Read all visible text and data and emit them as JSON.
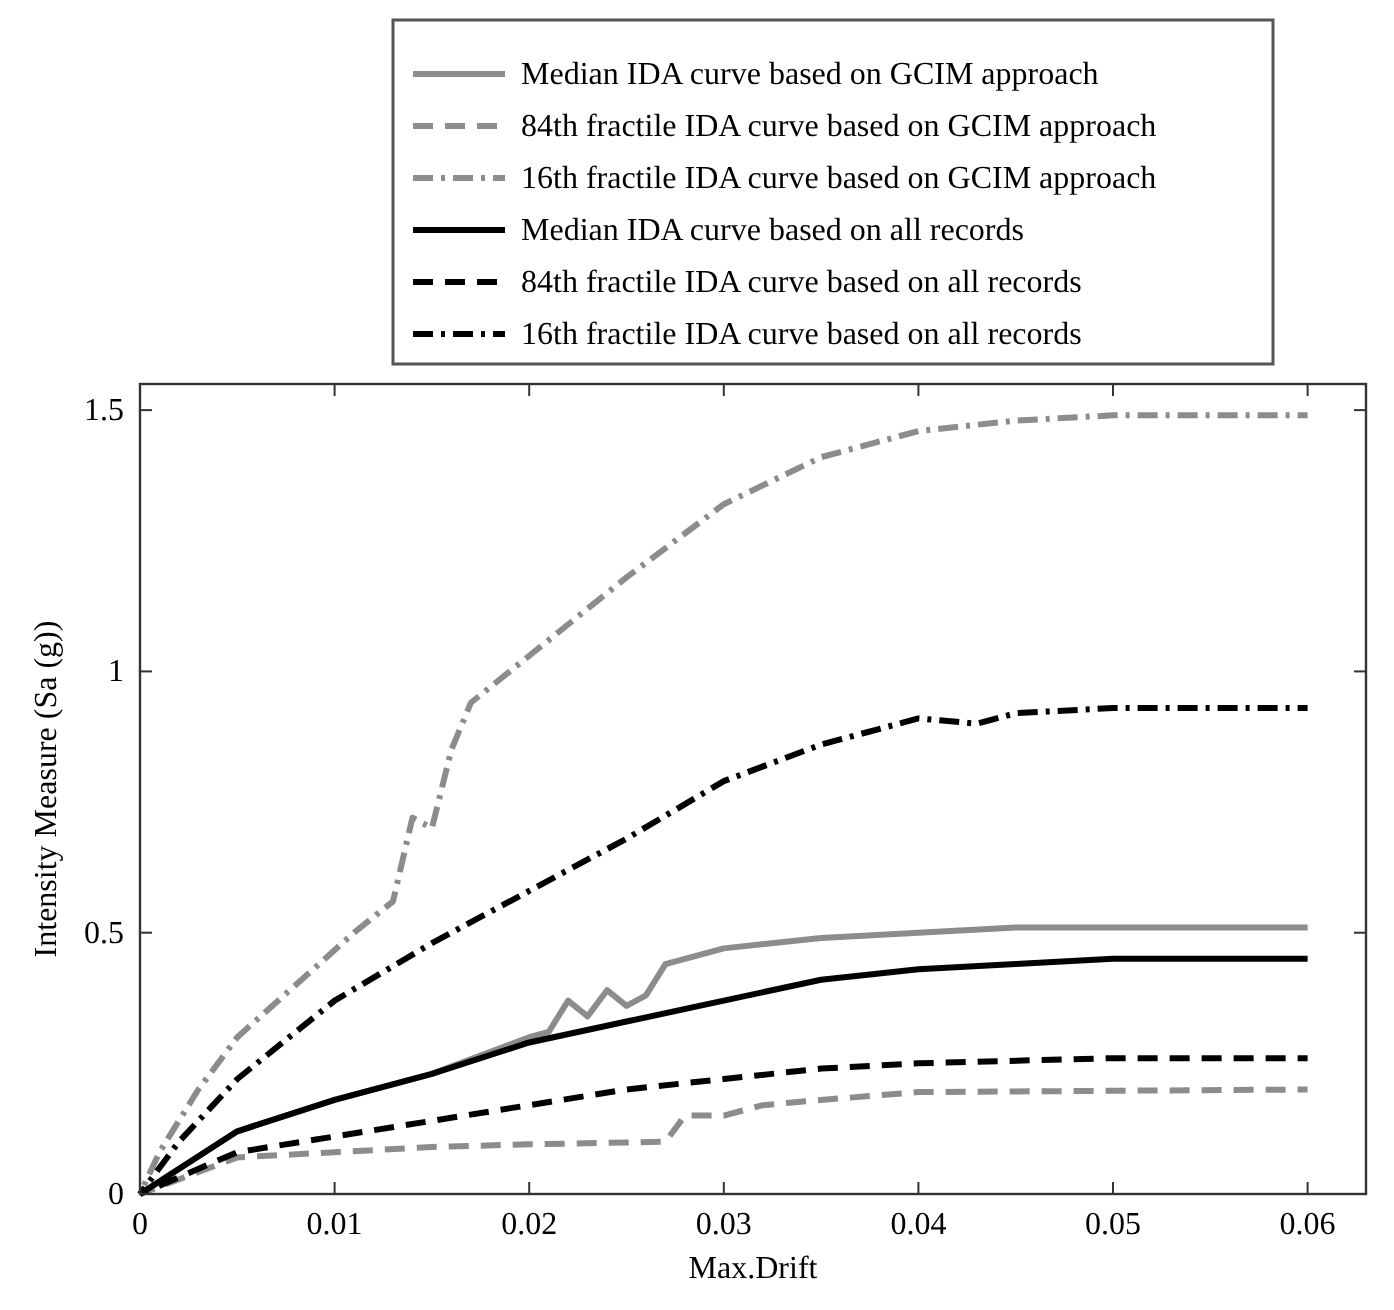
{
  "chart_data": {
    "type": "line",
    "xlabel": "Max.Drift",
    "ylabel": "Intensity Measure (Sa (g))",
    "xlim": [
      0,
      0.063
    ],
    "ylim": [
      0,
      1.55
    ],
    "xticks": [
      0,
      0.01,
      0.02,
      0.03,
      0.04,
      0.05,
      0.06
    ],
    "yticks": [
      0,
      0.5,
      1,
      1.5
    ],
    "grid": false,
    "legend": "top",
    "marker": "none",
    "series": [
      {
        "name": "Median IDA curve based on GCIM approach",
        "color": "#8c8c8c",
        "line_style": "solid",
        "x": [
          0,
          0.005,
          0.01,
          0.015,
          0.02,
          0.021,
          0.022,
          0.023,
          0.024,
          0.025,
          0.026,
          0.027,
          0.03,
          0.035,
          0.04,
          0.045,
          0.06
        ],
        "values": [
          0,
          0.12,
          0.18,
          0.23,
          0.3,
          0.31,
          0.37,
          0.34,
          0.39,
          0.36,
          0.38,
          0.44,
          0.47,
          0.49,
          0.5,
          0.51,
          0.51
        ]
      },
      {
        "name": "84th fractile IDA curve based on GCIM approach",
        "color": "#8c8c8c",
        "line_style": "dashed",
        "x": [
          0,
          0.005,
          0.01,
          0.015,
          0.02,
          0.027,
          0.028,
          0.03,
          0.032,
          0.035,
          0.04,
          0.06
        ],
        "values": [
          0,
          0.07,
          0.08,
          0.09,
          0.095,
          0.1,
          0.15,
          0.15,
          0.17,
          0.18,
          0.195,
          0.2
        ]
      },
      {
        "name": "16th fractile IDA curve based on GCIM approach",
        "color": "#8c8c8c",
        "line_style": "dashdot",
        "x": [
          0,
          0.001,
          0.003,
          0.005,
          0.008,
          0.011,
          0.013,
          0.014,
          0.015,
          0.016,
          0.017,
          0.02,
          0.025,
          0.03,
          0.035,
          0.04,
          0.045,
          0.05,
          0.06
        ],
        "values": [
          0,
          0.08,
          0.2,
          0.3,
          0.4,
          0.5,
          0.56,
          0.72,
          0.7,
          0.85,
          0.94,
          1.03,
          1.18,
          1.32,
          1.41,
          1.46,
          1.48,
          1.49,
          1.49
        ]
      },
      {
        "name": "Median IDA curve based on all records",
        "color": "#000000",
        "line_style": "solid",
        "x": [
          0,
          0.005,
          0.01,
          0.015,
          0.02,
          0.025,
          0.03,
          0.035,
          0.04,
          0.045,
          0.05,
          0.06
        ],
        "values": [
          0,
          0.12,
          0.18,
          0.23,
          0.29,
          0.33,
          0.37,
          0.41,
          0.43,
          0.44,
          0.45,
          0.45
        ]
      },
      {
        "name": "84th fractile IDA curve based on all records",
        "color": "#000000",
        "line_style": "dashed",
        "x": [
          0,
          0.005,
          0.01,
          0.015,
          0.02,
          0.025,
          0.03,
          0.035,
          0.04,
          0.05,
          0.06
        ],
        "values": [
          0,
          0.08,
          0.11,
          0.14,
          0.17,
          0.2,
          0.22,
          0.24,
          0.25,
          0.26,
          0.26
        ]
      },
      {
        "name": "16th fractile IDA curve based on all records",
        "color": "#000000",
        "line_style": "dashdot",
        "x": [
          0,
          0.002,
          0.005,
          0.01,
          0.015,
          0.02,
          0.025,
          0.03,
          0.035,
          0.04,
          0.043,
          0.045,
          0.05,
          0.06
        ],
        "values": [
          0,
          0.1,
          0.22,
          0.37,
          0.48,
          0.58,
          0.68,
          0.79,
          0.86,
          0.91,
          0.9,
          0.92,
          0.93,
          0.93
        ]
      }
    ]
  }
}
